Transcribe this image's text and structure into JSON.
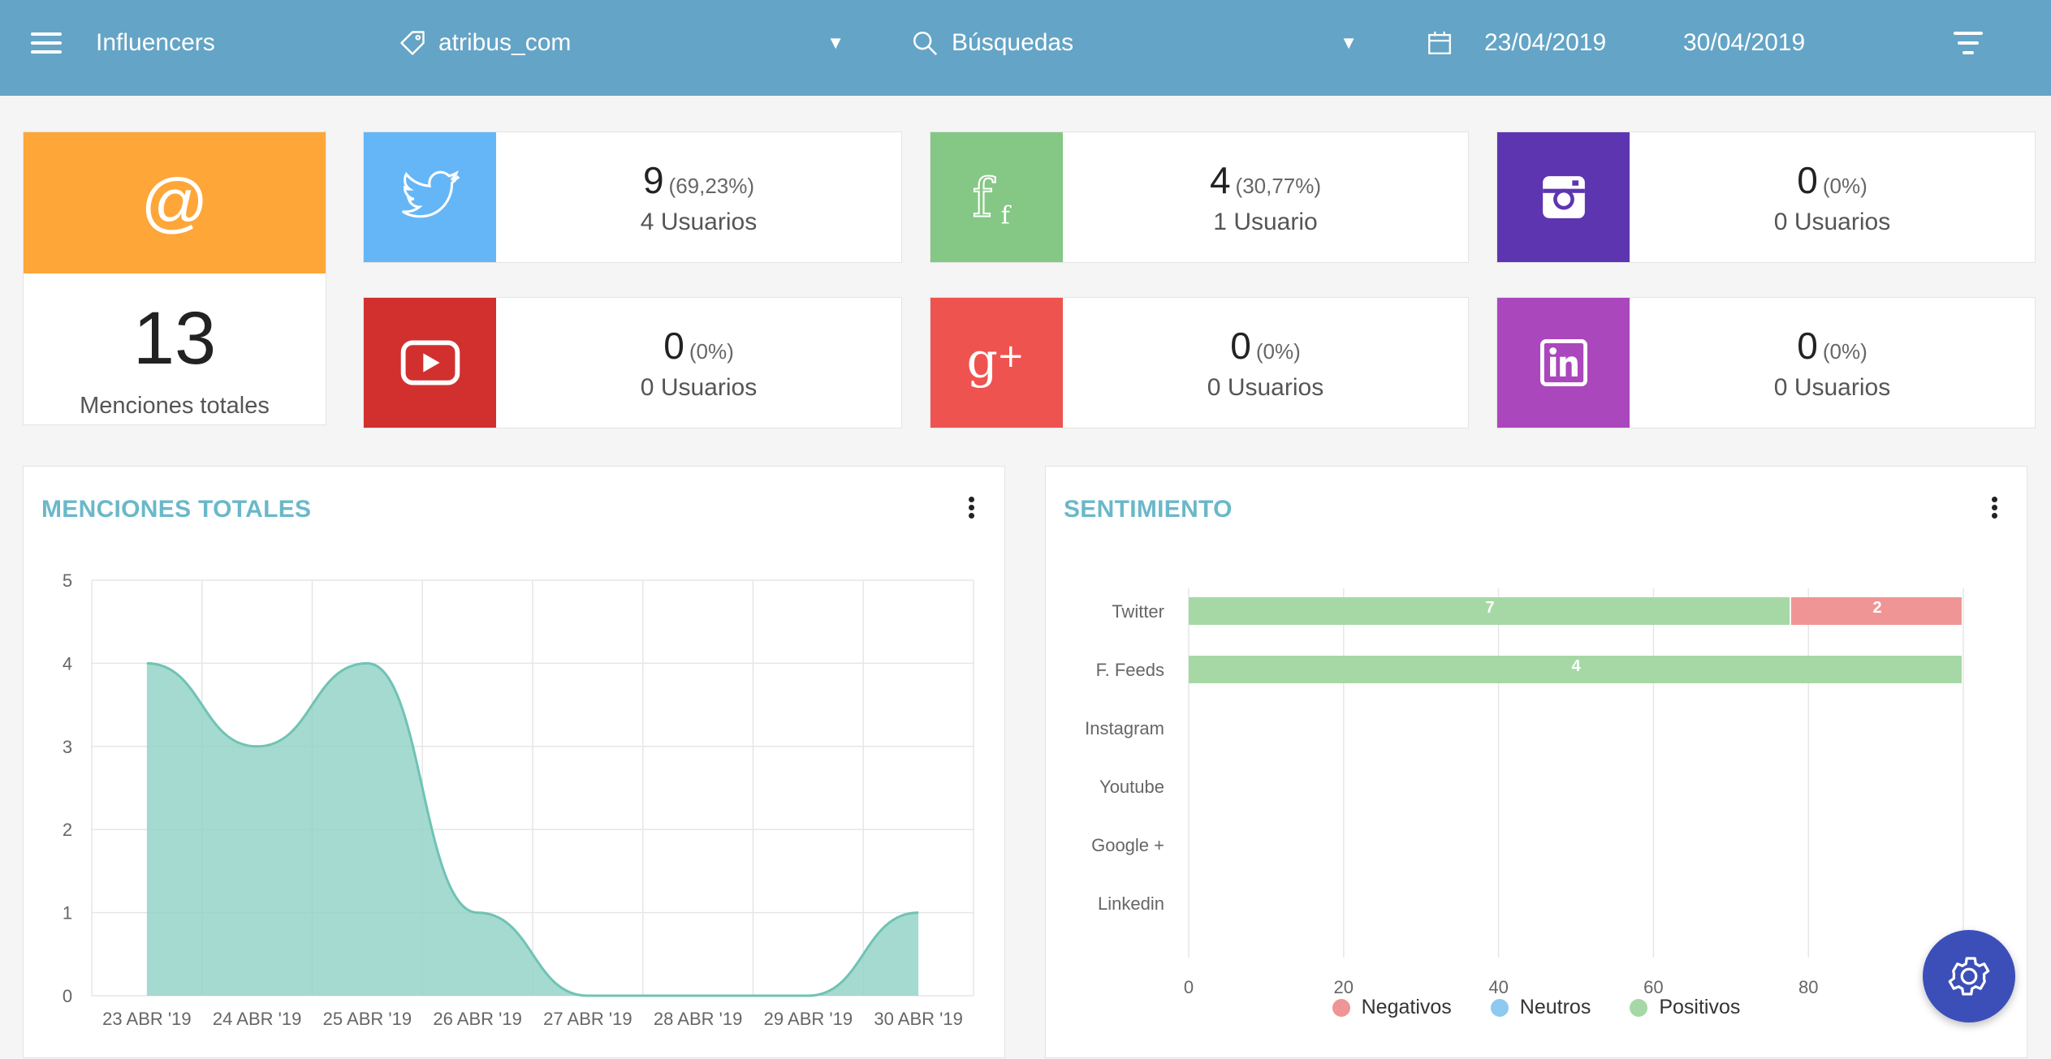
{
  "header": {
    "title": "Influencers",
    "tag_select": "atribus_com",
    "search_select": "Búsquedas",
    "date_from": "23/04/2019",
    "date_to": "30/04/2019"
  },
  "total": {
    "icon": "@",
    "value": "13",
    "label": "Menciones totales"
  },
  "networks": [
    {
      "name": "twitter",
      "count": "9",
      "pct": "(69,23%)",
      "users": "4 Usuarios",
      "color": "#65b6f6"
    },
    {
      "name": "facebook",
      "count": "4",
      "pct": "(30,77%)",
      "users": "1 Usuario",
      "color": "#85c785"
    },
    {
      "name": "instagram",
      "count": "0",
      "pct": "(0%)",
      "users": "0 Usuarios",
      "color": "#5e35b1"
    },
    {
      "name": "youtube",
      "count": "0",
      "pct": "(0%)",
      "users": "0 Usuarios",
      "color": "#d1302f"
    },
    {
      "name": "google-plus",
      "count": "0",
      "pct": "(0%)",
      "users": "0 Usuarios",
      "color": "#ef5350"
    },
    {
      "name": "linkedin",
      "count": "0",
      "pct": "(0%)",
      "users": "0 Usuarios",
      "color": "#ab47bc"
    }
  ],
  "panels": {
    "mentions_title": "MENCIONES TOTALES",
    "sentiment_title": "SENTIMIENTO"
  },
  "chart_data": [
    {
      "type": "area",
      "x": [
        "23 ABR '19",
        "24 ABR '19",
        "25 ABR '19",
        "26 ABR '19",
        "27 ABR '19",
        "28 ABR '19",
        "29 ABR '19",
        "30 ABR '19"
      ],
      "values": [
        4,
        3,
        4,
        1,
        0,
        0,
        0,
        1
      ],
      "ylim": [
        0,
        5
      ],
      "yticks": [
        "0",
        "1",
        "2",
        "3",
        "4",
        "5"
      ],
      "grid": true,
      "color": "#8ed1c6"
    },
    {
      "type": "bar",
      "orientation": "horizontal",
      "stacked": true,
      "categories": [
        "Twitter",
        "F. Feeds",
        "Instagram",
        "Youtube",
        "Google +",
        "Linkedin"
      ],
      "series": [
        {
          "name": "Negativos",
          "color": "#f09595",
          "values": [
            2,
            0,
            0,
            0,
            0,
            0
          ]
        },
        {
          "name": "Neutros",
          "color": "#8ec9ef",
          "values": [
            0,
            0,
            0,
            0,
            0,
            0
          ]
        },
        {
          "name": "Positivos",
          "color": "#a6d8a6",
          "values": [
            7,
            4,
            0,
            0,
            0,
            0
          ]
        }
      ],
      "stack_order": [
        "Positivos",
        "Neutros",
        "Negativos"
      ],
      "value_labels": [
        {
          "category": "Twitter",
          "series": "Positivos",
          "text": "7"
        },
        {
          "category": "Twitter",
          "series": "Negativos",
          "text": "2"
        },
        {
          "category": "F. Feeds",
          "series": "Positivos",
          "text": "4"
        }
      ],
      "percent_stack": true,
      "xlim": [
        0,
        100
      ],
      "xticks": [
        "0",
        "20",
        "40",
        "60",
        "80"
      ],
      "legend_position": "bottom",
      "grid": true
    }
  ]
}
